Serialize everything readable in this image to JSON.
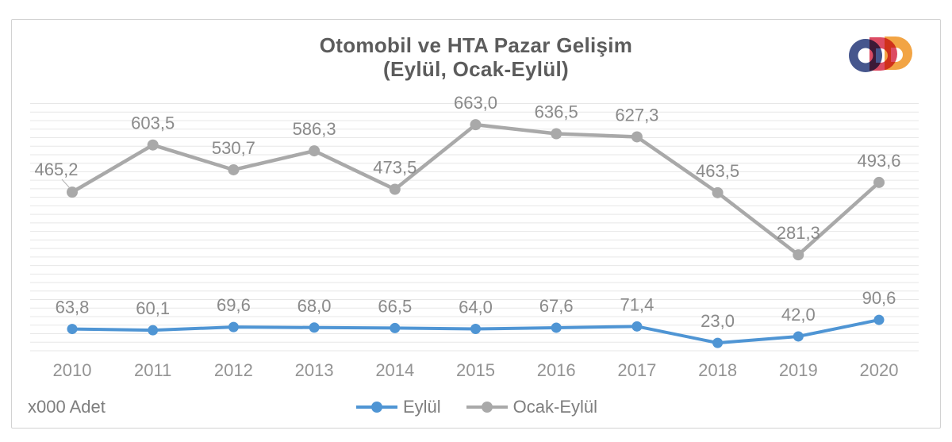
{
  "logo": {
    "name": "ODD",
    "colors": [
      "#f2a444",
      "#dc4b63",
      "#46568d"
    ]
  },
  "chart_data": {
    "type": "line",
    "title": "Otomobil ve HTA Pazar Gelişim",
    "subtitle": "(Eylül, Ocak-Eylül)",
    "unit_note": "x000 Adet",
    "categories": [
      "2010",
      "2011",
      "2012",
      "2013",
      "2014",
      "2015",
      "2016",
      "2017",
      "2018",
      "2019",
      "2020"
    ],
    "series": [
      {
        "name": "Eylül",
        "color": "#4f95d4",
        "values": [
          63.8,
          60.1,
          69.6,
          68.0,
          66.5,
          64.0,
          67.6,
          71.4,
          23.0,
          42.0,
          90.6
        ]
      },
      {
        "name": "Ocak-Eylül",
        "color": "#a9a9a9",
        "values": [
          465.2,
          603.5,
          530.7,
          586.3,
          473.5,
          663.0,
          636.5,
          627.3,
          463.5,
          281.3,
          493.6
        ]
      }
    ],
    "ylim": [
      0,
      725
    ],
    "grid_step": 25,
    "grid": "horizontal",
    "legend_position": "bottom",
    "decimal_separator": ","
  }
}
